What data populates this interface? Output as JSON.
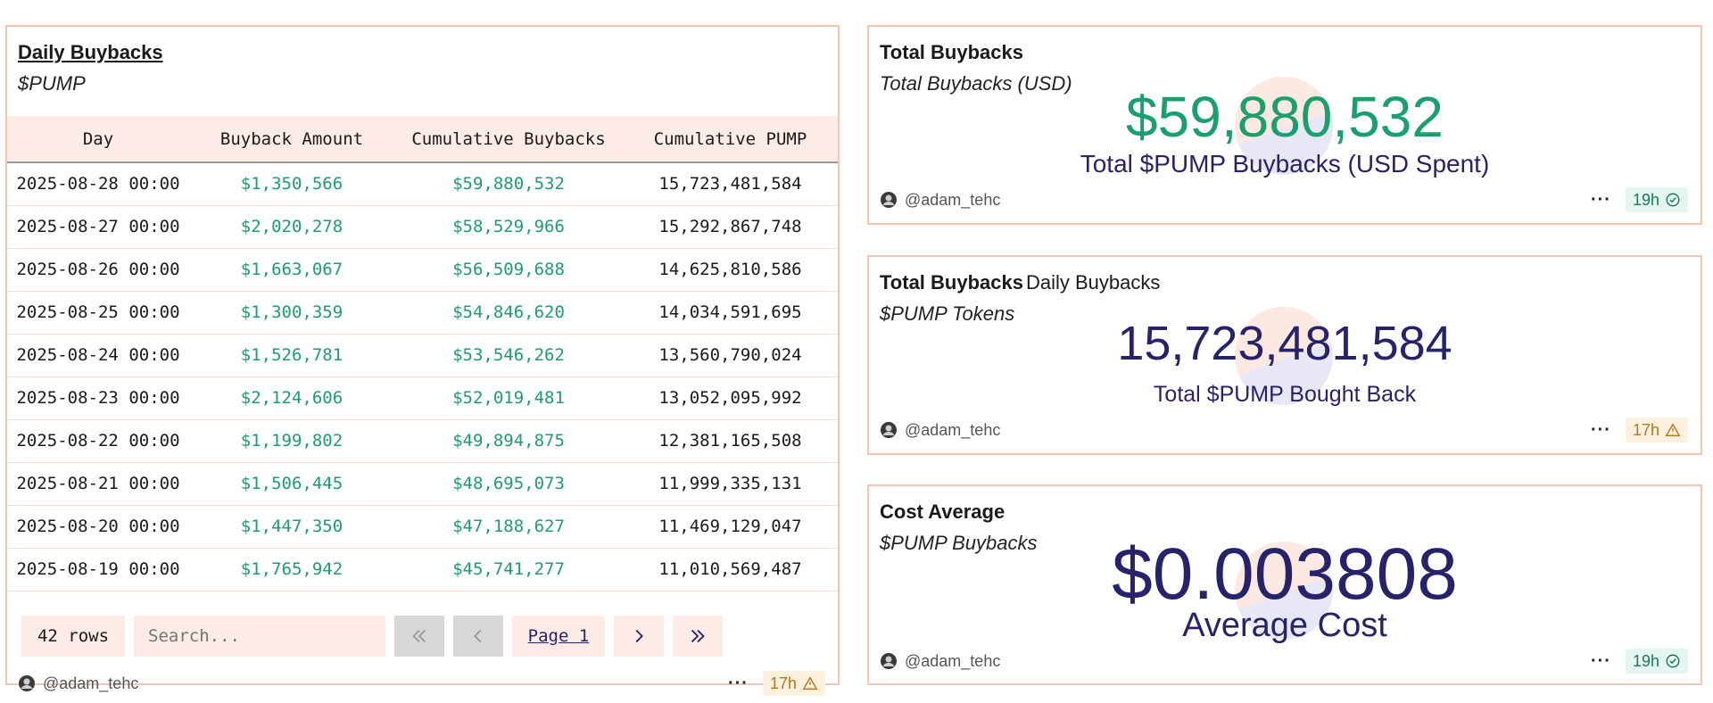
{
  "table_panel": {
    "title": "Daily Buybacks",
    "subtitle": "$PUMP",
    "columns": [
      "Day",
      "Buyback Amount",
      "Cumulative Buybacks",
      "Cumulative PUMP"
    ],
    "rows": [
      [
        "2025-08-28 00:00",
        "$1,350,566",
        "$59,880,532",
        "15,723,481,584"
      ],
      [
        "2025-08-27 00:00",
        "$2,020,278",
        "$58,529,966",
        "15,292,867,748"
      ],
      [
        "2025-08-26 00:00",
        "$1,663,067",
        "$56,509,688",
        "14,625,810,586"
      ],
      [
        "2025-08-25 00:00",
        "$1,300,359",
        "$54,846,620",
        "14,034,591,695"
      ],
      [
        "2025-08-24 00:00",
        "$1,526,781",
        "$53,546,262",
        "13,560,790,024"
      ],
      [
        "2025-08-23 00:00",
        "$2,124,606",
        "$52,019,481",
        "13,052,095,992"
      ],
      [
        "2025-08-22 00:00",
        "$1,199,802",
        "$49,894,875",
        "12,381,165,508"
      ],
      [
        "2025-08-21 00:00",
        "$1,506,445",
        "$48,695,073",
        "11,999,335,131"
      ],
      [
        "2025-08-20 00:00",
        "$1,447,350",
        "$47,188,627",
        "11,469,129,047"
      ],
      [
        "2025-08-19 00:00",
        "$1,765,942",
        "$45,741,277",
        "11,010,569,487"
      ]
    ],
    "row_count": "42 rows",
    "search_placeholder": "Search...",
    "page_label": "Page 1",
    "author": "@adam_tehc",
    "age": "17h",
    "age_status": "warning"
  },
  "total_usd": {
    "title": "Total Buybacks",
    "subtitle": "Total Buybacks (USD)",
    "value": "$59,880,532",
    "label": "Total $PUMP Buybacks (USD Spent)",
    "author": "@adam_tehc",
    "age": "19h",
    "age_status": "ok"
  },
  "total_tokens": {
    "title": "Total Buybacks",
    "tab2": "Daily Buybacks",
    "subtitle": "$PUMP Tokens",
    "value": "15,723,481,584",
    "label": "Total $PUMP Bought Back",
    "author": "@adam_tehc",
    "age": "17h",
    "age_status": "warning"
  },
  "cost_avg": {
    "title": "Cost Average",
    "subtitle": "$PUMP Buybacks",
    "value": "$0.003808",
    "label": "Average Cost",
    "author": "@adam_tehc",
    "age": "19h",
    "age_status": "ok"
  },
  "colors": {
    "border": "#f5c4b3",
    "green": "#1aa06c",
    "navy": "#27236b",
    "header_bg": "#fdebe6"
  }
}
